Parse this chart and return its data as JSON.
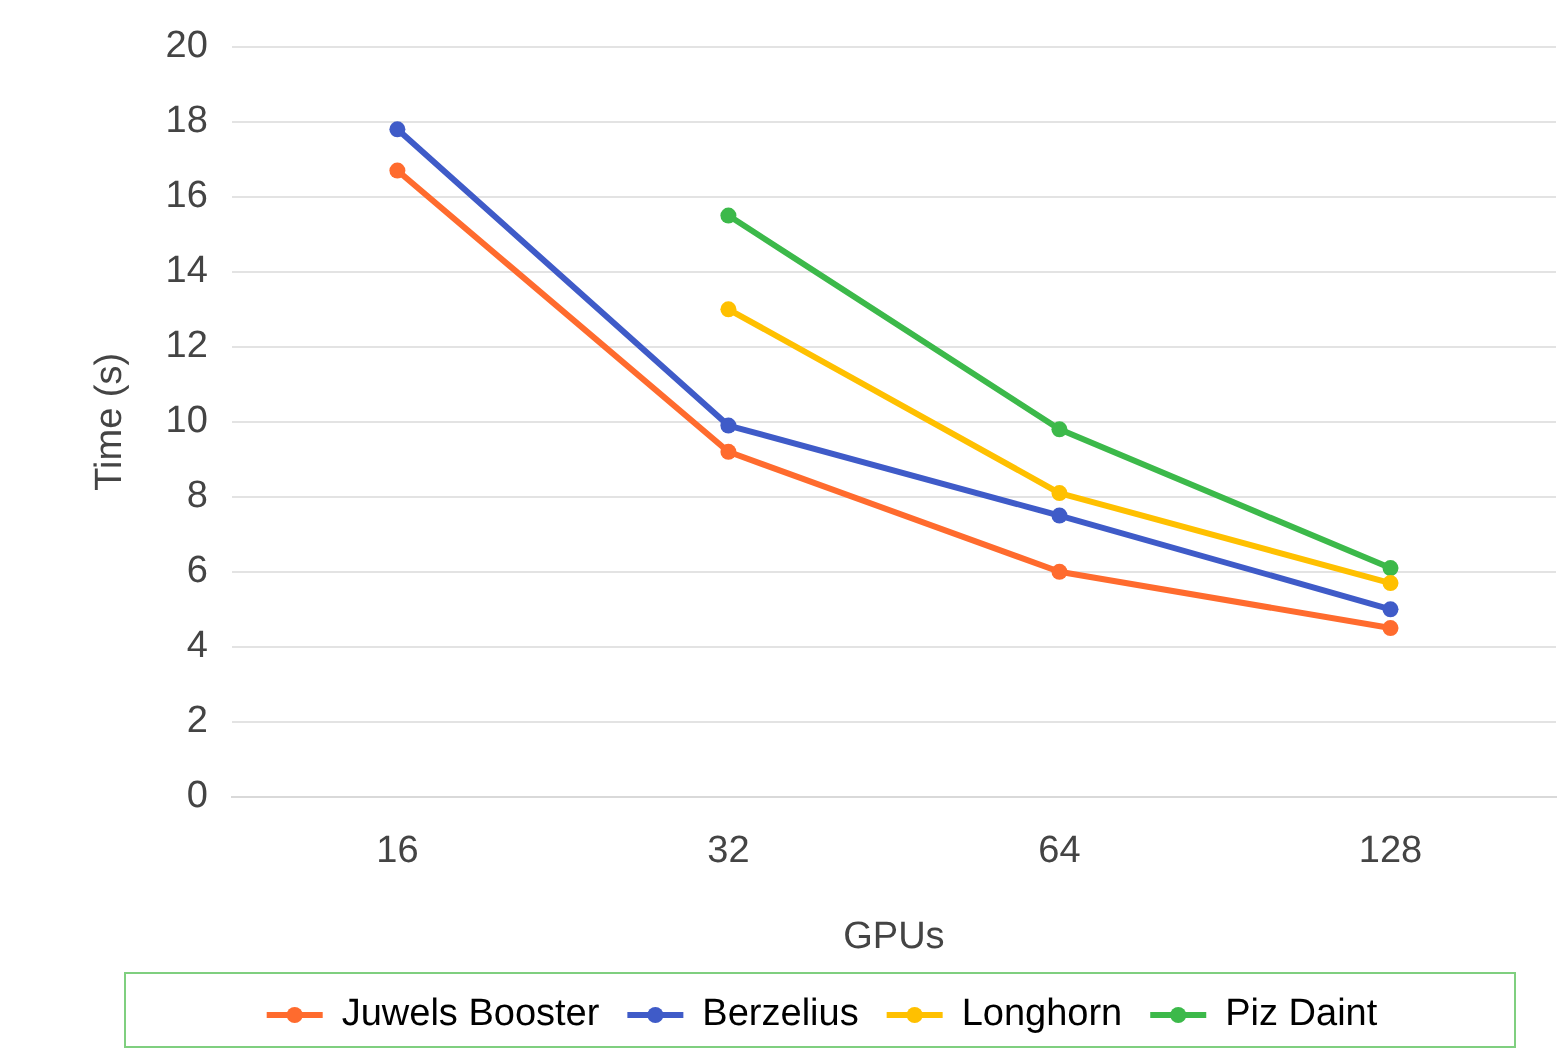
{
  "chart_data": {
    "type": "line",
    "xlabel": "GPUs",
    "ylabel": "Time (s)",
    "categories": [
      "16",
      "32",
      "64",
      "128"
    ],
    "series": [
      {
        "name": "Juwels Booster",
        "color": "#ff6b2e",
        "values": [
          16.7,
          9.2,
          6.0,
          4.5
        ]
      },
      {
        "name": "Berzelius",
        "color": "#3f5bc8",
        "values": [
          17.8,
          9.9,
          7.5,
          5.0
        ]
      },
      {
        "name": "Longhorn",
        "color": "#ffc000",
        "values": [
          null,
          13.0,
          8.1,
          5.7
        ]
      },
      {
        "name": "Piz Daint",
        "color": "#3cb94a",
        "values": [
          null,
          15.5,
          9.8,
          6.1
        ]
      }
    ],
    "ylim": [
      0,
      20
    ],
    "yticks": [
      0,
      2,
      4,
      6,
      8,
      10,
      12,
      14,
      16,
      18,
      20
    ],
    "grid": "y",
    "legend": "bottom",
    "marker": "circle",
    "line_style": "solid"
  }
}
